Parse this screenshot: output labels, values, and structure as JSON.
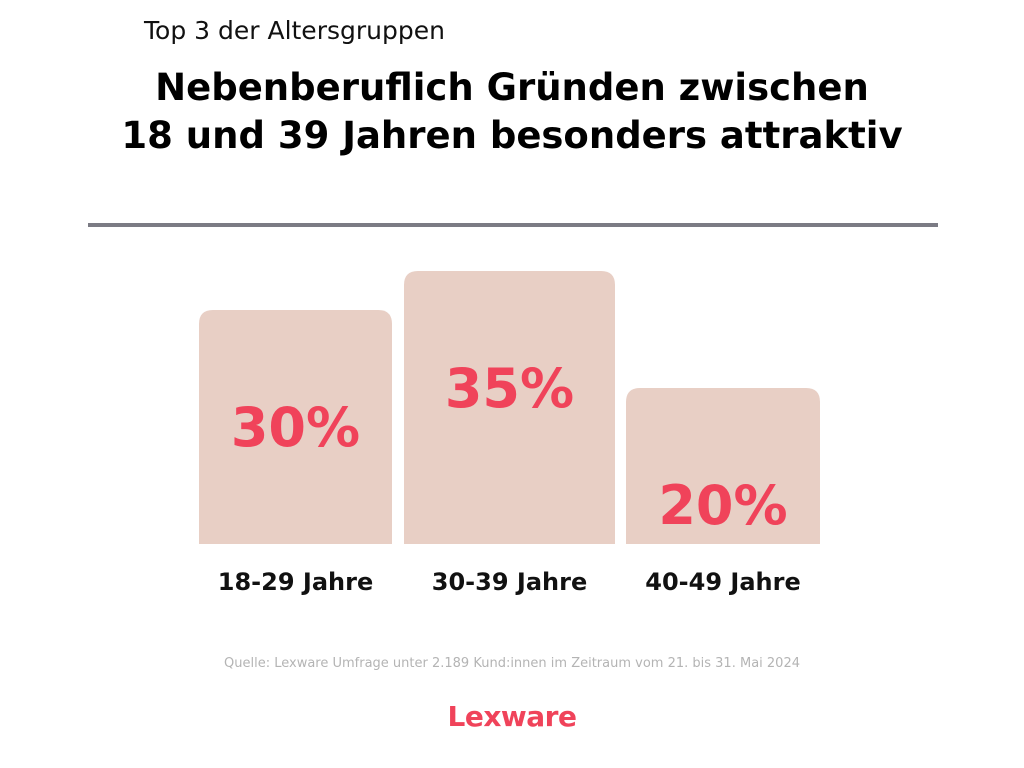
{
  "header": {
    "kicker": "Top 3 der Altersgruppen",
    "title_line1": "Nebenberuflich Gründen zwischen",
    "title_line2": "18 und 39 Jahren besonders attraktiv"
  },
  "chart_data": {
    "type": "bar",
    "categories": [
      "18-29 Jahre",
      "30-39 Jahre",
      "40-49 Jahre"
    ],
    "values": [
      30,
      35,
      20
    ],
    "value_labels": [
      "30%",
      "35%",
      "20%"
    ],
    "unit": "%",
    "title": "Nebenberuflich Gründen zwischen 18 und 39 Jahren besonders attraktiv",
    "grid": false,
    "legend": "none"
  },
  "colors": {
    "bar": "#e8cfc5",
    "value_label": "#f0435a",
    "divider": "#7b7b84",
    "brand": "#f0435a"
  },
  "footer": {
    "source": "Quelle: Lexware Umfrage unter 2.189 Kund:innen im Zeitraum vom 21. bis 31. Mai 2024",
    "logo": "Lexware"
  }
}
